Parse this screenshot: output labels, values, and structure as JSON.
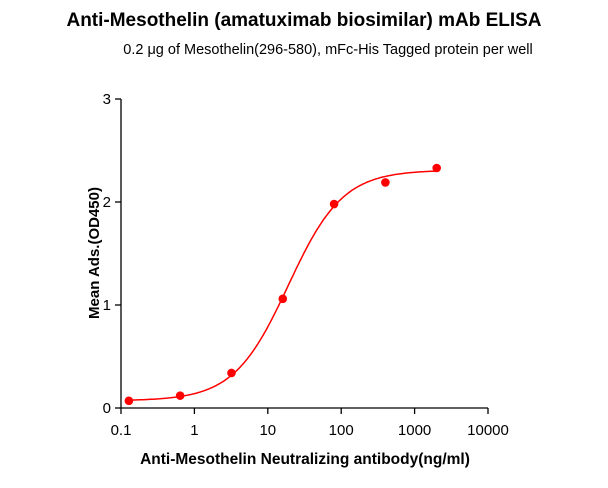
{
  "chart_data": {
    "type": "scatter",
    "title": "Anti-Mesothelin (amatuximab biosimilar) mAb ELISA",
    "subtitle": "0.2 μg of Mesothelin(296-580), mFc-His Tagged protein per well",
    "xlabel": "Anti-Mesothelin Neutralizing antibody(ng/ml)",
    "ylabel": "Mean Ads.(OD450)",
    "xscale": "log",
    "xlim": [
      0.1,
      10000
    ],
    "ylim": [
      0,
      3
    ],
    "xticks": [
      "0.1",
      "1",
      "10",
      "100",
      "1000",
      "10000"
    ],
    "yticks": [
      "0",
      "1",
      "2",
      "3"
    ],
    "grid": false,
    "color": "#ff0000",
    "points": {
      "x": [
        0.128,
        0.64,
        3.2,
        16,
        80,
        400,
        2000
      ],
      "y": [
        0.07,
        0.12,
        0.34,
        1.06,
        1.98,
        2.19,
        2.33
      ]
    },
    "fit": {
      "model": "4PL",
      "bottom": 0.07,
      "top": 2.31,
      "ec50": 19,
      "hill": 1.17
    }
  }
}
